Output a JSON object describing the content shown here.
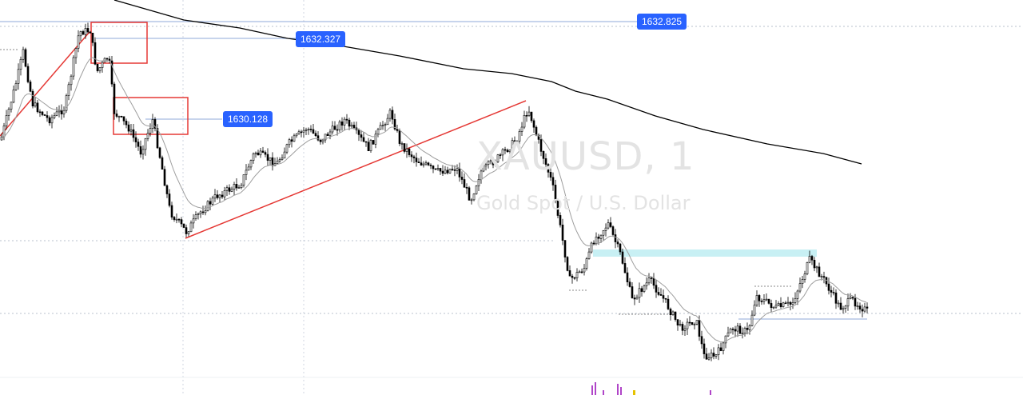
{
  "chart_data": {
    "type": "candlestick",
    "symbol": "XAUUSD",
    "timeframe": "1",
    "description": "Gold Spot / U.S. Dollar",
    "price_labels": [
      "1632.825",
      "1632.327",
      "1630.128"
    ],
    "colors": {
      "candle": "#000000",
      "ema_short": "#9e9e9e",
      "ema_long": "#000000",
      "trendline": "#e53935",
      "box": "#e53935",
      "zone": "#c8f0f4",
      "grid": "#d6dbe3",
      "label_bg": "#2962ff",
      "volume": "#b045c8"
    },
    "grid": true
  }
}
